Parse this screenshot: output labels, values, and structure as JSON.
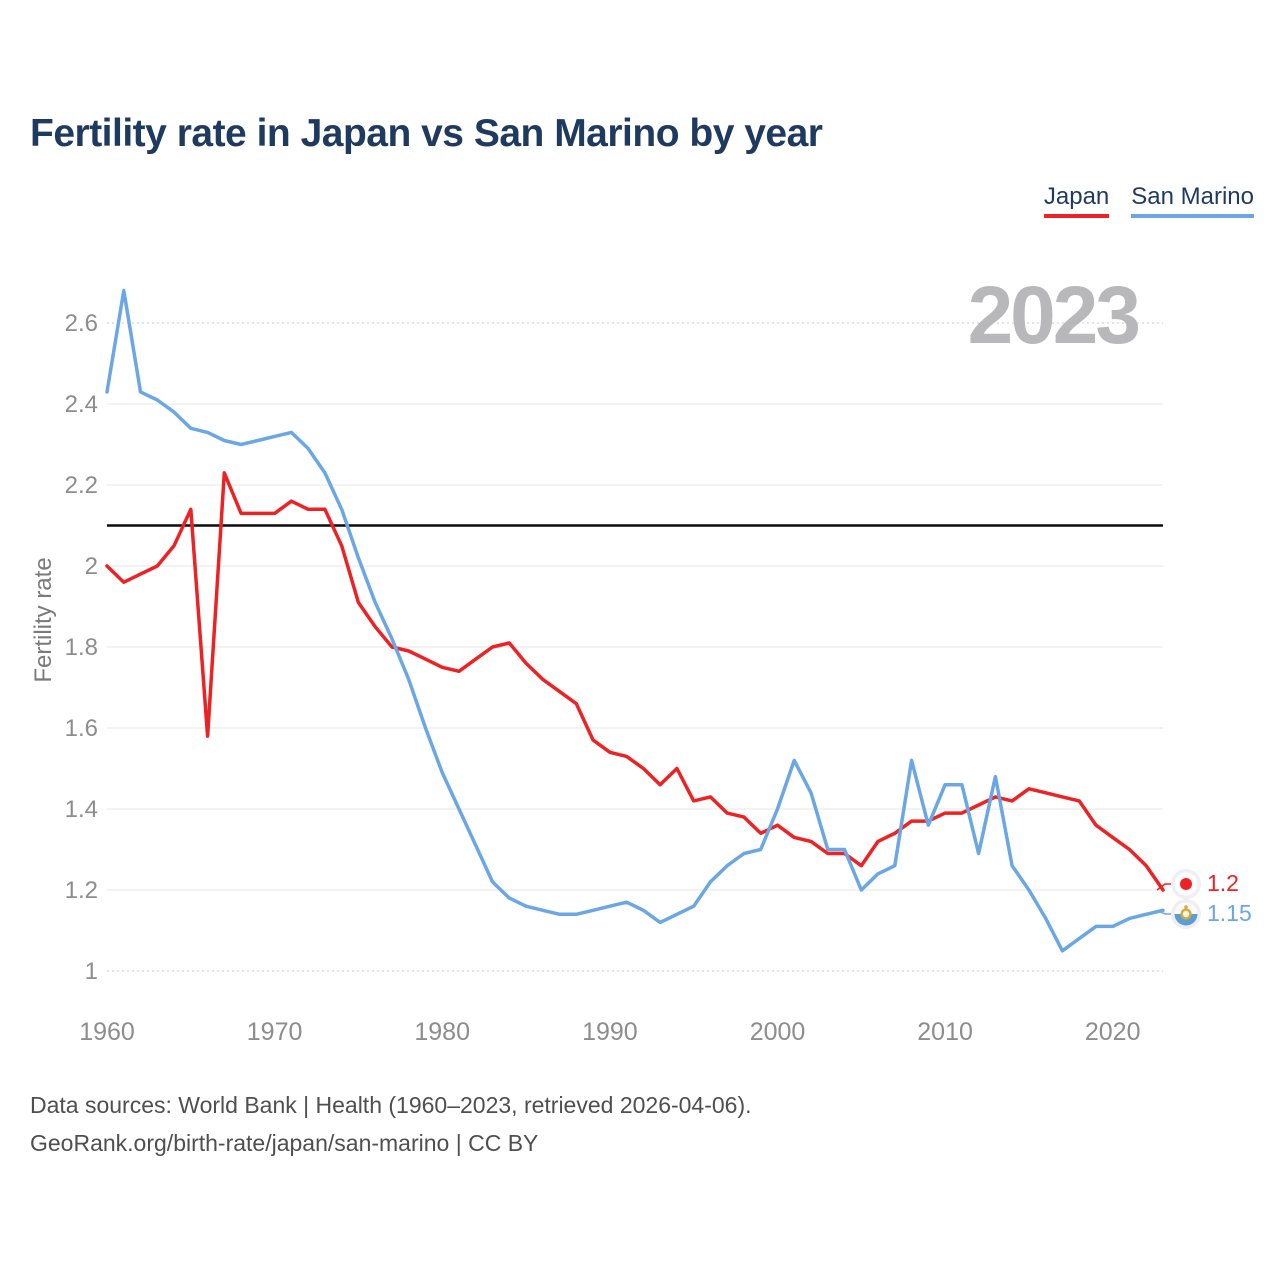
{
  "header": {
    "title": "Fertility rate in Japan vs San Marino by year"
  },
  "legend": {
    "items": [
      {
        "label": "Japan",
        "color": "#ed2224"
      },
      {
        "label": "San Marino",
        "color": "#6aa7e4"
      }
    ]
  },
  "watermark": "2023",
  "y_axis_title": "Fertility rate",
  "end_labels": {
    "japan": "1.2",
    "san_marino": "1.15"
  },
  "footer": {
    "line1": "Data sources: World Bank | Health (1960–2023, retrieved 2026-04-06).",
    "line2": "GeoRank.org/birth-rate/japan/san-marino | CC BY"
  },
  "chart_data": {
    "type": "line",
    "title": "Fertility rate in Japan vs San Marino by year",
    "xlabel": "",
    "ylabel": "Fertility rate",
    "x_start": 1960,
    "x_end": 2023,
    "x_ticks": [
      1960,
      1970,
      1980,
      1990,
      2000,
      2010,
      2020
    ],
    "y_ticks": [
      1,
      1.2,
      1.4,
      1.6,
      1.8,
      2,
      2.2,
      2.4,
      2.6
    ],
    "ylim": [
      1.0,
      2.68
    ],
    "grid": "horizontal",
    "legend_position": "top-right",
    "reference_line": 2.1,
    "series": [
      {
        "name": "Japan",
        "color": "#ed2224",
        "end_value": 1.2,
        "values": [
          2.0,
          1.96,
          1.98,
          2.0,
          2.05,
          2.14,
          1.58,
          2.23,
          2.13,
          2.13,
          2.13,
          2.16,
          2.14,
          2.14,
          2.05,
          1.91,
          1.85,
          1.8,
          1.79,
          1.77,
          1.75,
          1.74,
          1.77,
          1.8,
          1.81,
          1.76,
          1.72,
          1.69,
          1.66,
          1.57,
          1.54,
          1.53,
          1.5,
          1.46,
          1.5,
          1.42,
          1.43,
          1.39,
          1.38,
          1.34,
          1.36,
          1.33,
          1.32,
          1.29,
          1.29,
          1.26,
          1.32,
          1.34,
          1.37,
          1.37,
          1.39,
          1.39,
          1.41,
          1.43,
          1.42,
          1.45,
          1.44,
          1.43,
          1.42,
          1.36,
          1.33,
          1.3,
          1.26,
          1.2
        ]
      },
      {
        "name": "San Marino",
        "color": "#6aa7e4",
        "end_value": 1.15,
        "values": [
          2.43,
          2.68,
          2.43,
          2.41,
          2.38,
          2.34,
          2.33,
          2.31,
          2.3,
          2.31,
          2.32,
          2.33,
          2.29,
          2.23,
          2.14,
          2.02,
          1.91,
          1.82,
          1.72,
          1.6,
          1.49,
          1.4,
          1.31,
          1.22,
          1.18,
          1.16,
          1.15,
          1.14,
          1.14,
          1.15,
          1.16,
          1.17,
          1.15,
          1.12,
          1.14,
          1.16,
          1.22,
          1.26,
          1.29,
          1.3,
          1.4,
          1.52,
          1.44,
          1.3,
          1.3,
          1.2,
          1.24,
          1.26,
          1.52,
          1.36,
          1.46,
          1.46,
          1.29,
          1.48,
          1.26,
          1.2,
          1.13,
          1.05,
          1.08,
          1.11,
          1.11,
          1.13,
          1.14,
          1.15
        ]
      }
    ]
  }
}
